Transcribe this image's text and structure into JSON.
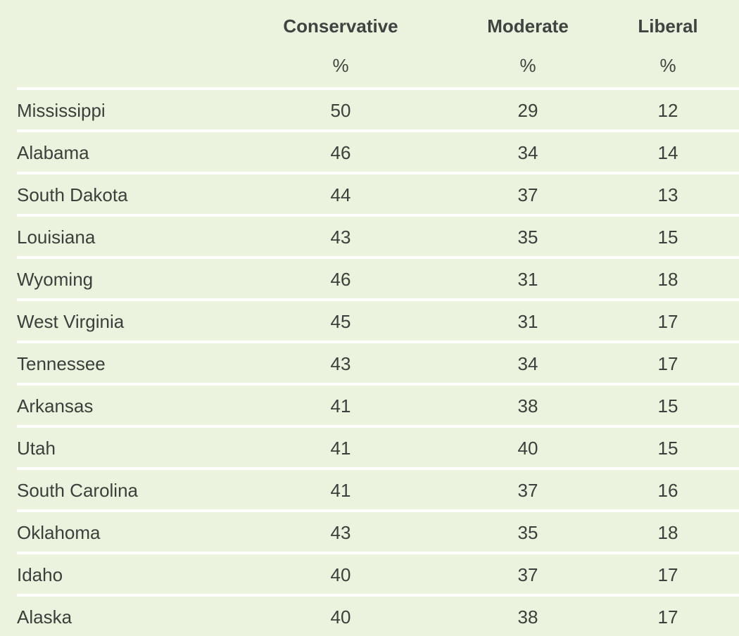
{
  "chart_data": {
    "type": "table",
    "columns": [
      {
        "name": "Conservative",
        "unit": "%"
      },
      {
        "name": "Moderate",
        "unit": "%"
      },
      {
        "name": "Liberal",
        "unit": "%"
      }
    ],
    "rows": [
      {
        "state": "Mississippi",
        "values": [
          "50",
          "29",
          "12"
        ]
      },
      {
        "state": "Alabama",
        "values": [
          "46",
          "34",
          "14"
        ]
      },
      {
        "state": "South Dakota",
        "values": [
          "44",
          "37",
          "13"
        ]
      },
      {
        "state": "Louisiana",
        "values": [
          "43",
          "35",
          "15"
        ]
      },
      {
        "state": "Wyoming",
        "values": [
          "46",
          "31",
          "18"
        ]
      },
      {
        "state": "West Virginia",
        "values": [
          "45",
          "31",
          "17"
        ]
      },
      {
        "state": "Tennessee",
        "values": [
          "43",
          "34",
          "17"
        ]
      },
      {
        "state": "Arkansas",
        "values": [
          "41",
          "38",
          "15"
        ]
      },
      {
        "state": "Utah",
        "values": [
          "41",
          "40",
          "15"
        ]
      },
      {
        "state": "South Carolina",
        "values": [
          "41",
          "37",
          "16"
        ]
      },
      {
        "state": "Oklahoma",
        "values": [
          "43",
          "35",
          "18"
        ]
      },
      {
        "state": "Idaho",
        "values": [
          "40",
          "37",
          "17"
        ]
      },
      {
        "state": "Alaska",
        "values": [
          "40",
          "38",
          "17"
        ]
      }
    ]
  }
}
